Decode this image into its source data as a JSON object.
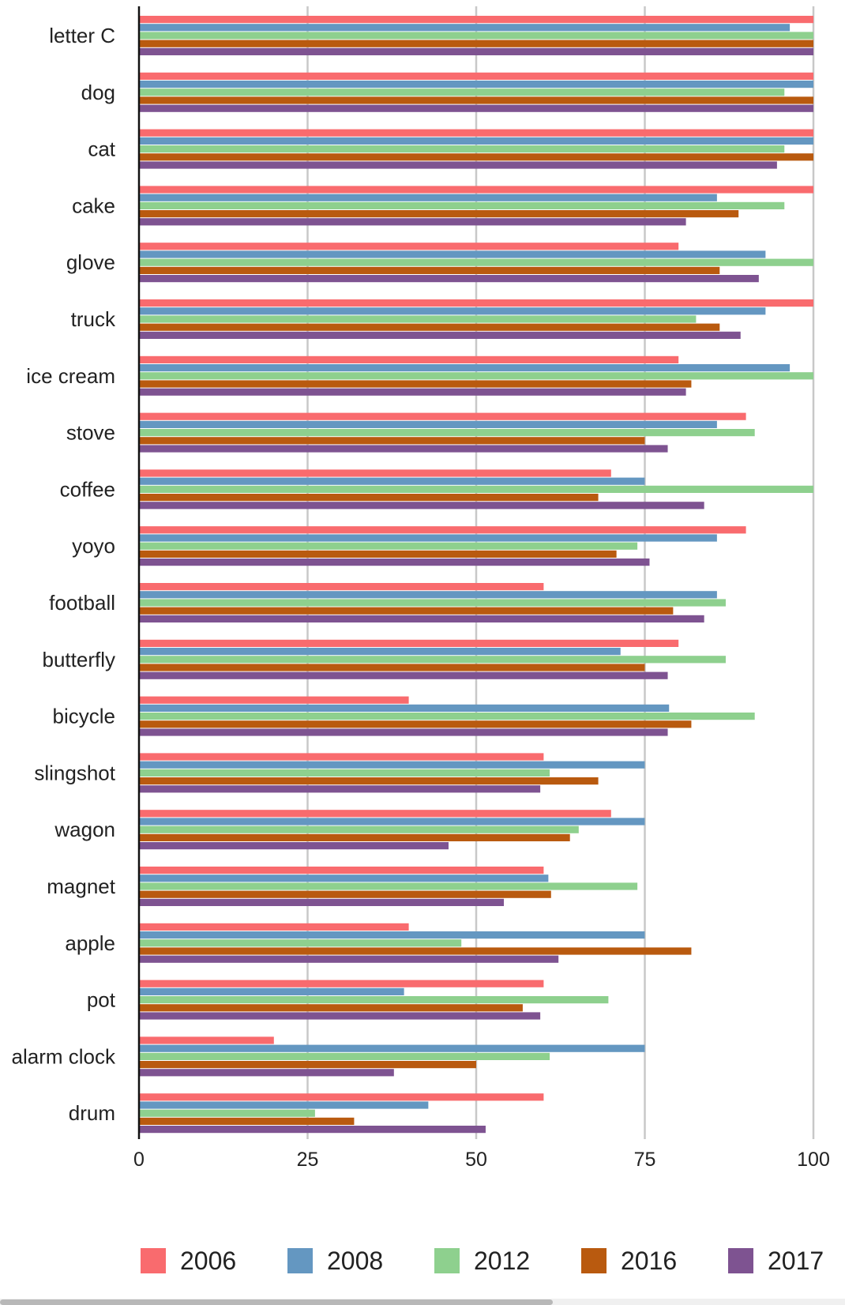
{
  "chart_data": {
    "type": "bar",
    "orientation": "horizontal",
    "categories": [
      "letter C",
      "dog",
      "cat",
      "cake",
      "glove",
      "truck",
      "ice cream",
      "stove",
      "coffee",
      "yoyo",
      "football",
      "butterfly",
      "bicycle",
      "slingshot",
      "wagon",
      "magnet",
      "apple",
      "pot",
      "alarm clock",
      "drum"
    ],
    "series": [
      {
        "name": "2006",
        "color": "#f96b6e",
        "values": [
          100,
          100,
          100,
          100,
          80,
          100,
          80,
          90,
          70,
          90,
          60,
          80,
          40,
          60,
          70,
          60,
          40,
          60,
          20,
          60
        ]
      },
      {
        "name": "2008",
        "color": "#6497c1",
        "values": [
          96.5,
          100,
          100,
          85.7,
          92.9,
          92.9,
          96.5,
          85.7,
          75,
          85.7,
          85.7,
          71.4,
          78.6,
          75,
          75,
          60.7,
          75,
          39.3,
          75,
          42.9
        ]
      },
      {
        "name": "2012",
        "color": "#8ed08e",
        "values": [
          100,
          95.7,
          95.7,
          95.7,
          100,
          82.6,
          100,
          91.3,
          100,
          73.9,
          87,
          87,
          91.3,
          60.9,
          65.2,
          73.9,
          47.8,
          69.6,
          60.9,
          26.1
        ]
      },
      {
        "name": "2016",
        "color": "#b95a0f",
        "values": [
          100,
          100,
          100,
          88.9,
          86.1,
          86.1,
          81.9,
          75,
          68.1,
          70.8,
          79.2,
          75,
          81.9,
          68.1,
          63.9,
          61.1,
          81.9,
          56.9,
          50,
          31.9
        ]
      },
      {
        "name": "2017",
        "color": "#7e5391",
        "values": [
          100,
          100,
          94.6,
          81.1,
          91.9,
          89.2,
          81.1,
          78.4,
          83.8,
          75.7,
          83.8,
          78.4,
          78.4,
          59.5,
          45.9,
          54.1,
          62.2,
          59.5,
          37.8,
          51.4
        ]
      }
    ],
    "x_ticks": [
      "0",
      "25",
      "50",
      "75",
      "100"
    ],
    "xlim": [
      0,
      100
    ],
    "grid": true,
    "legend_position": "bottom"
  }
}
